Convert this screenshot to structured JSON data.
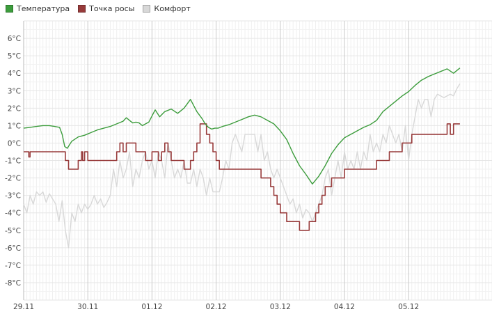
{
  "chart_data": {
    "type": "line",
    "title": "",
    "xlabel": "",
    "ylabel": "",
    "ylim": [
      -9,
      7
    ],
    "xlim": [
      0,
      7.3
    ],
    "grid": true,
    "legend_position": "top-left",
    "x_ticks": [
      {
        "x": 0,
        "label": "29.11"
      },
      {
        "x": 1,
        "label": "30.11"
      },
      {
        "x": 2,
        "label": "01.12"
      },
      {
        "x": 3,
        "label": "02.12"
      },
      {
        "x": 4,
        "label": "03.12"
      },
      {
        "x": 5,
        "label": "04.12"
      },
      {
        "x": 6,
        "label": "05.12"
      }
    ],
    "y_ticks": [
      {
        "y": 6,
        "label": "6°C"
      },
      {
        "y": 5,
        "label": "5°C"
      },
      {
        "y": 4,
        "label": "4°C"
      },
      {
        "y": 3,
        "label": "3°C"
      },
      {
        "y": 2,
        "label": "2°C"
      },
      {
        "y": 1,
        "label": "1°C"
      },
      {
        "y": 0,
        "label": "0°C"
      },
      {
        "y": -1,
        "label": "-1°C"
      },
      {
        "y": -2,
        "label": "-2°C"
      },
      {
        "y": -3,
        "label": "-3°C"
      },
      {
        "y": -4,
        "label": "-4°C"
      },
      {
        "y": -5,
        "label": "-5°C"
      },
      {
        "y": -6,
        "label": "-6°C"
      },
      {
        "y": -7,
        "label": "-7°C"
      },
      {
        "y": -8,
        "label": "-8°C"
      }
    ],
    "series": [
      {
        "name": "Температура",
        "color": "#3c9c3c",
        "stroke_width": 1.4,
        "x": [
          0,
          0.1,
          0.2,
          0.3,
          0.4,
          0.48,
          0.56,
          0.6,
          0.64,
          0.68,
          0.75,
          0.85,
          0.95,
          1.05,
          1.15,
          1.25,
          1.35,
          1.45,
          1.55,
          1.6,
          1.65,
          1.7,
          1.75,
          1.8,
          1.85,
          1.95,
          2.05,
          2.12,
          2.2,
          2.3,
          2.4,
          2.5,
          2.6,
          2.7,
          2.78,
          2.83,
          2.88,
          2.93,
          2.98,
          3.03,
          3.1,
          3.2,
          3.3,
          3.4,
          3.5,
          3.6,
          3.7,
          3.8,
          3.9,
          4.0,
          4.1,
          4.2,
          4.3,
          4.4,
          4.5,
          4.6,
          4.7,
          4.8,
          4.9,
          5.0,
          5.1,
          5.2,
          5.3,
          5.4,
          5.5,
          5.6,
          5.7,
          5.8,
          5.9,
          6.0,
          6.1,
          6.2,
          6.3,
          6.4,
          6.5,
          6.6,
          6.7,
          6.8
        ],
        "y": [
          0.85,
          0.9,
          0.95,
          1.0,
          1.0,
          0.95,
          0.9,
          0.5,
          -0.2,
          -0.3,
          0.1,
          0.35,
          0.45,
          0.6,
          0.75,
          0.85,
          0.95,
          1.1,
          1.25,
          1.45,
          1.3,
          1.15,
          1.2,
          1.15,
          1.0,
          1.2,
          1.9,
          1.5,
          1.8,
          1.95,
          1.7,
          2.0,
          2.5,
          1.8,
          1.4,
          1.1,
          0.9,
          0.8,
          0.85,
          0.85,
          0.95,
          1.05,
          1.2,
          1.35,
          1.5,
          1.6,
          1.5,
          1.3,
          1.1,
          0.7,
          0.2,
          -0.6,
          -1.3,
          -1.8,
          -2.35,
          -1.9,
          -1.3,
          -0.6,
          -0.1,
          0.3,
          0.5,
          0.7,
          0.9,
          1.05,
          1.3,
          1.8,
          2.1,
          2.4,
          2.7,
          2.95,
          3.3,
          3.6,
          3.8,
          3.95,
          4.1,
          4.25,
          4.0,
          4.3
        ]
      },
      {
        "name": "Точка росы",
        "color": "#973a3a",
        "stroke_width": 1.6,
        "x": [
          0,
          0.05,
          0.08,
          0.1,
          0.12,
          0.5,
          0.6,
          0.65,
          0.7,
          0.8,
          0.85,
          0.9,
          0.92,
          0.95,
          1.0,
          1.1,
          1.3,
          1.45,
          1.5,
          1.55,
          1.6,
          1.7,
          1.75,
          1.8,
          1.9,
          2.0,
          2.05,
          2.1,
          2.15,
          2.2,
          2.25,
          2.3,
          2.35,
          2.4,
          2.5,
          2.6,
          2.65,
          2.7,
          2.75,
          2.8,
          2.85,
          2.9,
          2.95,
          3.0,
          3.05,
          3.1,
          3.2,
          3.4,
          3.6,
          3.7,
          3.8,
          3.85,
          3.9,
          3.95,
          4.0,
          4.1,
          4.15,
          4.2,
          4.3,
          4.4,
          4.45,
          4.5,
          4.55,
          4.6,
          4.65,
          4.7,
          4.8,
          4.9,
          5.0,
          5.1,
          5.2,
          5.3,
          5.4,
          5.5,
          5.6,
          5.7,
          5.8,
          5.9,
          6.0,
          6.05,
          6.1,
          6.2,
          6.3,
          6.4,
          6.5,
          6.55,
          6.6,
          6.65,
          6.7,
          6.8
        ],
        "y": [
          -0.5,
          -0.5,
          -0.8,
          -0.5,
          -0.5,
          -0.5,
          -0.5,
          -1.0,
          -1.5,
          -1.5,
          -1.0,
          -0.5,
          -1.0,
          -0.5,
          -1.0,
          -1.0,
          -1.0,
          -0.5,
          0.0,
          -0.5,
          0.0,
          0.0,
          -0.5,
          -0.5,
          -1.0,
          -0.5,
          -0.5,
          -1.0,
          -0.5,
          0.0,
          -0.5,
          -1.0,
          -1.0,
          -1.0,
          -1.5,
          -1.0,
          -0.5,
          0.0,
          1.1,
          1.1,
          0.5,
          0.0,
          -0.5,
          -1.0,
          -1.5,
          -1.5,
          -1.5,
          -1.5,
          -1.5,
          -2.0,
          -2.0,
          -2.5,
          -3.0,
          -3.5,
          -4.0,
          -4.5,
          -4.5,
          -4.5,
          -5.0,
          -5.0,
          -4.5,
          -4.5,
          -4.0,
          -3.5,
          -3.0,
          -2.5,
          -2.0,
          -2.0,
          -1.5,
          -1.5,
          -1.5,
          -1.5,
          -1.5,
          -1.0,
          -1.0,
          -0.5,
          -0.5,
          0.0,
          0.0,
          0.5,
          0.5,
          0.5,
          0.5,
          0.5,
          0.5,
          0.5,
          1.1,
          0.5,
          1.1,
          1.1
        ]
      },
      {
        "name": "Комфорт",
        "color": "#d8d8d8",
        "stroke_width": 1.4,
        "x": [
          0,
          0.05,
          0.1,
          0.15,
          0.2,
          0.25,
          0.3,
          0.35,
          0.4,
          0.45,
          0.5,
          0.55,
          0.6,
          0.65,
          0.7,
          0.75,
          0.8,
          0.85,
          0.9,
          0.95,
          1.0,
          1.05,
          1.1,
          1.15,
          1.2,
          1.25,
          1.3,
          1.35,
          1.4,
          1.45,
          1.5,
          1.55,
          1.6,
          1.65,
          1.7,
          1.75,
          1.8,
          1.85,
          1.9,
          1.95,
          2.0,
          2.05,
          2.1,
          2.15,
          2.2,
          2.25,
          2.3,
          2.35,
          2.4,
          2.45,
          2.5,
          2.55,
          2.6,
          2.65,
          2.7,
          2.75,
          2.8,
          2.85,
          2.9,
          2.95,
          3.0,
          3.05,
          3.1,
          3.15,
          3.2,
          3.25,
          3.3,
          3.35,
          3.4,
          3.45,
          3.5,
          3.55,
          3.6,
          3.65,
          3.7,
          3.75,
          3.8,
          3.85,
          3.9,
          3.95,
          4.0,
          4.05,
          4.1,
          4.15,
          4.2,
          4.25,
          4.3,
          4.35,
          4.4,
          4.45,
          4.5,
          4.55,
          4.6,
          4.65,
          4.7,
          4.75,
          4.8,
          4.85,
          4.9,
          4.95,
          5.0,
          5.05,
          5.1,
          5.15,
          5.2,
          5.25,
          5.3,
          5.35,
          5.4,
          5.45,
          5.5,
          5.55,
          5.6,
          5.65,
          5.7,
          5.75,
          5.8,
          5.85,
          5.9,
          5.95,
          6.0,
          6.05,
          6.1,
          6.15,
          6.2,
          6.25,
          6.3,
          6.35,
          6.4,
          6.45,
          6.5,
          6.55,
          6.6,
          6.65,
          6.7,
          6.75,
          6.8
        ],
        "y": [
          -3.5,
          -4.0,
          -3.0,
          -3.5,
          -2.8,
          -3.0,
          -2.8,
          -3.4,
          -2.9,
          -3.2,
          -3.5,
          -4.5,
          -3.3,
          -5.0,
          -6.0,
          -4.0,
          -4.5,
          -3.5,
          -4.0,
          -3.5,
          -3.8,
          -3.5,
          -3.0,
          -3.5,
          -3.2,
          -3.7,
          -3.4,
          -3.0,
          -1.5,
          -2.5,
          -1.0,
          -2.0,
          -1.5,
          -0.5,
          -2.5,
          -1.5,
          -2.0,
          -1.0,
          -0.5,
          -1.5,
          -1.0,
          -2.0,
          -0.5,
          -1.0,
          -2.0,
          0.0,
          -1.0,
          -2.0,
          -1.5,
          -2.0,
          -1.0,
          -2.3,
          -2.3,
          -1.5,
          -2.5,
          -1.5,
          -2.0,
          -3.0,
          -2.0,
          -2.8,
          -2.8,
          -2.8,
          -2.0,
          -1.0,
          -1.5,
          0.0,
          0.5,
          0.0,
          -0.5,
          0.5,
          0.5,
          0.5,
          0.5,
          -0.5,
          0.5,
          -1.0,
          -0.5,
          -1.5,
          -2.0,
          -1.5,
          -2.0,
          -2.5,
          -3.0,
          -3.5,
          -3.2,
          -4.0,
          -3.5,
          -4.3,
          -3.8,
          -4.0,
          -4.5,
          -4.0,
          -3.5,
          -3.0,
          -2.0,
          -1.5,
          -3.0,
          -2.0,
          -1.0,
          -2.0,
          -0.5,
          -1.5,
          -1.0,
          -1.5,
          -0.5,
          -1.5,
          -0.5,
          -1.0,
          0.5,
          -0.5,
          0.0,
          -0.5,
          0.5,
          0.0,
          1.0,
          0.5,
          0.0,
          0.5,
          -0.5,
          1.0,
          -1.0,
          0.5,
          1.5,
          2.5,
          2.0,
          2.5,
          2.5,
          1.5,
          2.5,
          2.8,
          2.7,
          2.6,
          2.7,
          2.8,
          2.7,
          3.1,
          3.4
        ]
      }
    ]
  }
}
